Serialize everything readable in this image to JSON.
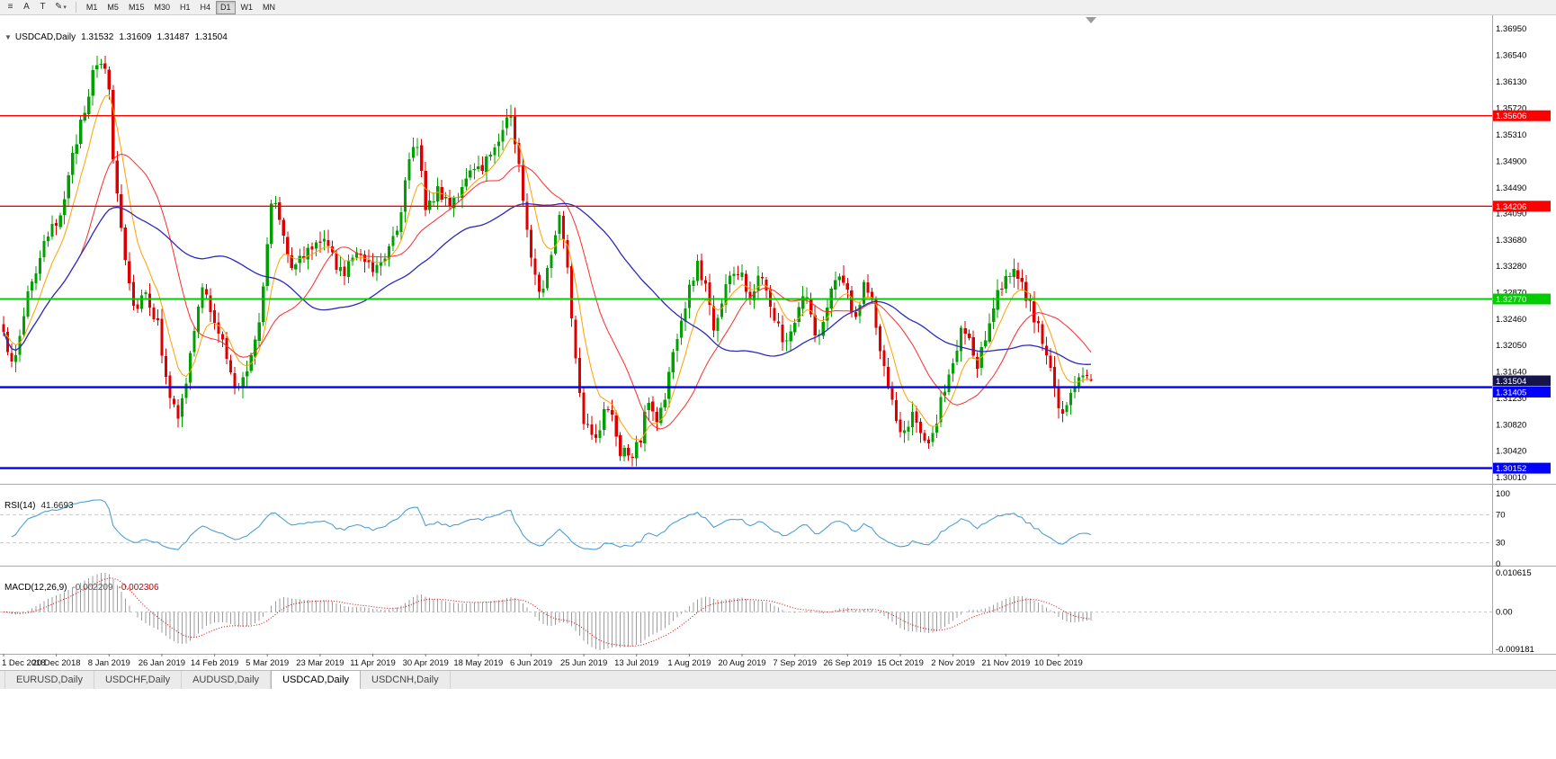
{
  "toolbar": {
    "icons": [
      {
        "name": "chart-objects-icon",
        "glyph": "≡"
      },
      {
        "name": "arrow-tool-icon",
        "glyph": "A"
      },
      {
        "name": "text-tool-icon",
        "glyph": "T"
      },
      {
        "name": "draw-tool-icon",
        "glyph": "✎"
      },
      {
        "name": "draw-tool-caret",
        "glyph": "▾"
      }
    ],
    "timeframes": [
      {
        "label": "M1",
        "active": false
      },
      {
        "label": "M5",
        "active": false
      },
      {
        "label": "M15",
        "active": false
      },
      {
        "label": "M30",
        "active": false
      },
      {
        "label": "H1",
        "active": false
      },
      {
        "label": "H4",
        "active": false
      },
      {
        "label": "D1",
        "active": true
      },
      {
        "label": "W1",
        "active": false
      },
      {
        "label": "MN",
        "active": false
      }
    ]
  },
  "chart": {
    "collapse_arrow": "▼",
    "symbol_label": "USDCAD,Daily",
    "ohlc": {
      "open": "1.31532",
      "high": "1.31609",
      "low": "1.31487",
      "close": "1.31504"
    },
    "price_axis_labels": [
      "1.36950",
      "1.36540",
      "1.36130",
      "1.35720",
      "1.35310",
      "1.34900",
      "1.34490",
      "1.34090",
      "1.33680",
      "1.33280",
      "1.32870",
      "1.32460",
      "1.32050",
      "1.31640",
      "1.31230",
      "1.30820",
      "1.30420",
      "1.30010"
    ],
    "date_axis_labels": [
      "1 Dec 2018",
      "20 Dec 2018",
      "8 Jan 2019",
      "26 Jan 2019",
      "14 Feb 2019",
      "5 Mar 2019",
      "23 Mar 2019",
      "11 Apr 2019",
      "30 Apr 2019",
      "18 May 2019",
      "6 Jun 2019",
      "25 Jun 2019",
      "13 Jul 2019",
      "1 Aug 2019",
      "20 Aug 2019",
      "7 Sep 2019",
      "26 Sep 2019",
      "15 Oct 2019",
      "2 Nov 2019",
      "21 Nov 2019",
      "10 Dec 2019"
    ]
  },
  "rsi_panel": {
    "name": "RSI(14)",
    "value": "41.6693",
    "axis_labels": [
      "100",
      "70",
      "30",
      "0"
    ],
    "upper_level": 70,
    "lower_level": 30
  },
  "macd_panel": {
    "name": "MACD(12,26,9)",
    "main_value": "-0.002209",
    "signal_value": "-0.002306",
    "axis_labels": [
      "0.010615",
      "0.00",
      "-0.009181"
    ]
  },
  "tabs": [
    {
      "label": "EURUSD,Daily",
      "active": false
    },
    {
      "label": "USDCHF,Daily",
      "active": false
    },
    {
      "label": "AUDUSD,Daily",
      "active": false
    },
    {
      "label": "USDCAD,Daily",
      "active": true
    },
    {
      "label": "USDCNH,Daily",
      "active": false
    }
  ],
  "chart_data": {
    "type": "candlestick",
    "symbol": "USDCAD",
    "timeframe": "Daily",
    "bars": 269,
    "price_min": 1.2991,
    "price_max": 1.3716,
    "close_waypoints": [
      [
        0,
        1.3215
      ],
      [
        3,
        1.318
      ],
      [
        6,
        1.329
      ],
      [
        10,
        1.3355
      ],
      [
        13,
        1.3395
      ],
      [
        16,
        1.346
      ],
      [
        19,
        1.3555
      ],
      [
        22,
        1.362
      ],
      [
        24,
        1.3645
      ],
      [
        26,
        1.3605
      ],
      [
        27,
        1.3495
      ],
      [
        29,
        1.339
      ],
      [
        32,
        1.3265
      ],
      [
        35,
        1.329
      ],
      [
        38,
        1.3235
      ],
      [
        41,
        1.313
      ],
      [
        43,
        1.3085
      ],
      [
        45,
        1.315
      ],
      [
        47,
        1.323
      ],
      [
        49,
        1.329
      ],
      [
        52,
        1.325
      ],
      [
        55,
        1.3185
      ],
      [
        57,
        1.3135
      ],
      [
        60,
        1.317
      ],
      [
        63,
        1.325
      ],
      [
        65,
        1.3355
      ],
      [
        66,
        1.3435
      ],
      [
        68,
        1.34
      ],
      [
        71,
        1.3335
      ],
      [
        74,
        1.334
      ],
      [
        78,
        1.337
      ],
      [
        81,
        1.3345
      ],
      [
        84,
        1.331
      ],
      [
        87,
        1.336
      ],
      [
        91,
        1.3325
      ],
      [
        94,
        1.335
      ],
      [
        97,
        1.339
      ],
      [
        100,
        1.3485
      ],
      [
        102,
        1.352
      ],
      [
        104,
        1.3425
      ],
      [
        107,
        1.344
      ],
      [
        110,
        1.343
      ],
      [
        113,
        1.3448
      ],
      [
        117,
        1.348
      ],
      [
        120,
        1.35
      ],
      [
        123,
        1.3545
      ],
      [
        125,
        1.3562
      ],
      [
        127,
        1.348
      ],
      [
        129,
        1.339
      ],
      [
        131,
        1.3315
      ],
      [
        133,
        1.3285
      ],
      [
        135,
        1.335
      ],
      [
        137,
        1.3408
      ],
      [
        139,
        1.333
      ],
      [
        141,
        1.3185
      ],
      [
        143,
        1.3095
      ],
      [
        146,
        1.3065
      ],
      [
        149,
        1.311
      ],
      [
        152,
        1.3045
      ],
      [
        155,
        1.3028
      ],
      [
        157,
        1.3065
      ],
      [
        159,
        1.312
      ],
      [
        161,
        1.3085
      ],
      [
        163,
        1.313
      ],
      [
        165,
        1.319
      ],
      [
        167,
        1.324
      ],
      [
        169,
        1.329
      ],
      [
        171,
        1.333
      ],
      [
        173,
        1.33
      ],
      [
        175,
        1.3235
      ],
      [
        177,
        1.327
      ],
      [
        179,
        1.332
      ],
      [
        182,
        1.331
      ],
      [
        184,
        1.328
      ],
      [
        186,
        1.332
      ],
      [
        188,
        1.33
      ],
      [
        190,
        1.325
      ],
      [
        192,
        1.3215
      ],
      [
        195,
        1.3235
      ],
      [
        197,
        1.329
      ],
      [
        199,
        1.325
      ],
      [
        201,
        1.3215
      ],
      [
        203,
        1.326
      ],
      [
        205,
        1.331
      ],
      [
        208,
        1.329
      ],
      [
        210,
        1.3245
      ],
      [
        212,
        1.33
      ],
      [
        214,
        1.327
      ],
      [
        216,
        1.32
      ],
      [
        218,
        1.313
      ],
      [
        220,
        1.309
      ],
      [
        222,
        1.3072
      ],
      [
        224,
        1.311
      ],
      [
        226,
        1.3062
      ],
      [
        228,
        1.3042
      ],
      [
        230,
        1.309
      ],
      [
        232,
        1.314
      ],
      [
        234,
        1.3172
      ],
      [
        236,
        1.323
      ],
      [
        238,
        1.3212
      ],
      [
        240,
        1.3165
      ],
      [
        242,
        1.322
      ],
      [
        244,
        1.327
      ],
      [
        246,
        1.33
      ],
      [
        248,
        1.3322
      ],
      [
        250,
        1.3302
      ],
      [
        252,
        1.3282
      ],
      [
        254,
        1.3252
      ],
      [
        256,
        1.3205
      ],
      [
        258,
        1.3162
      ],
      [
        260,
        1.3112
      ],
      [
        262,
        1.3102
      ],
      [
        264,
        1.3148
      ],
      [
        266,
        1.3168
      ],
      [
        268,
        1.31504
      ]
    ],
    "last_bar": {
      "open": 1.31532,
      "high": 1.31609,
      "low": 1.31487,
      "close": 1.31504
    },
    "levels": [
      {
        "price": 1.35606,
        "label": "1.35606",
        "color": "#FF0000",
        "width": 1.4
      },
      {
        "price": 1.34206,
        "label": "1.34206",
        "color": "#FF0000",
        "width": 1.4
      },
      {
        "price": 1.3277,
        "label": "1.32770",
        "color": "#00CC00",
        "width": 2
      },
      {
        "price": 1.31405,
        "label": "1.31405",
        "color": "#0000FF",
        "width": 2.4
      },
      {
        "price": 1.30152,
        "label": "1.30152",
        "color": "#0000FF",
        "width": 2.4
      }
    ],
    "bid": {
      "price": 1.31504,
      "label": "1.31504",
      "color": "#15154B"
    },
    "moving_averages": [
      {
        "type": "ema",
        "period": 8,
        "color": "#FFA000"
      },
      {
        "type": "sma",
        "period": 20,
        "color": "#FF2A2A"
      },
      {
        "type": "sma",
        "period": 50,
        "color": "#2A2AC0"
      }
    ],
    "indicators": {
      "rsi": {
        "period": 14,
        "color": "#4D9FD6"
      },
      "macd": {
        "fast": 12,
        "slow": 26,
        "signal": 9,
        "hist_color": "#9C9C9C",
        "signal_color": "#D40000"
      }
    },
    "colors": {
      "bg": "#FFFFFF",
      "up": "#00A000",
      "down": "#DE0000",
      "axis_text": "#000000",
      "dashed_level": "#C9C9C9",
      "separator": "#A8A8A8"
    }
  }
}
